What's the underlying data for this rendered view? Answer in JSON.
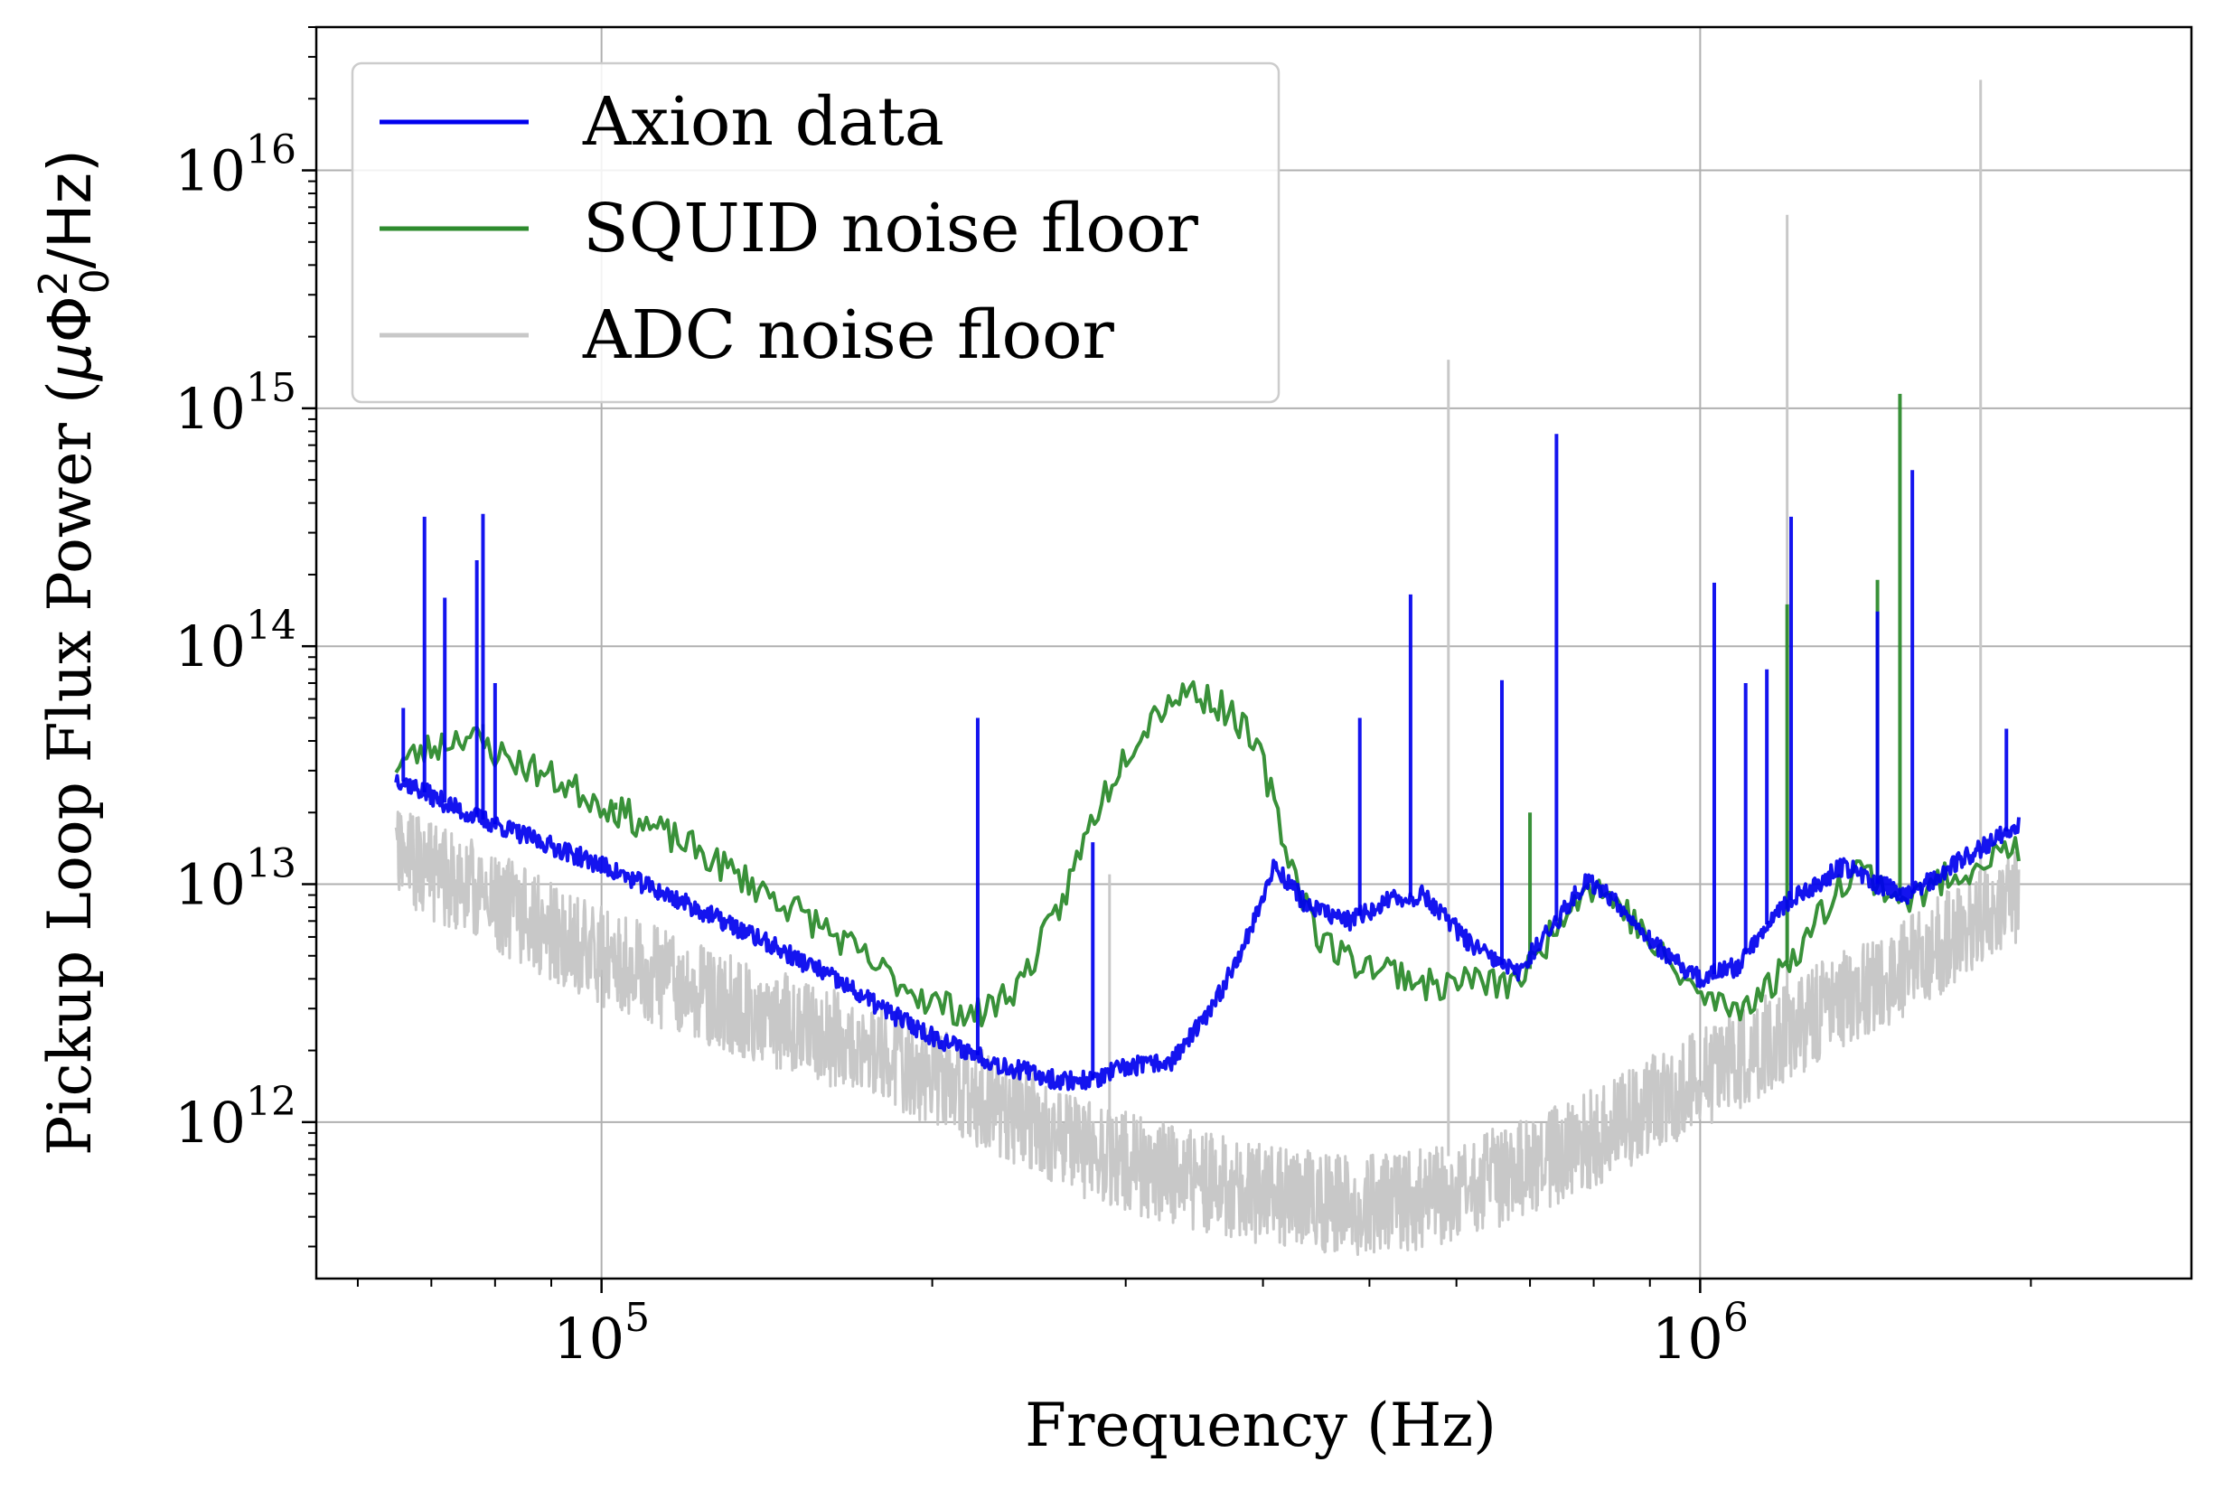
{
  "chart_data": {
    "type": "line",
    "xlabel": "Frequency (Hz)",
    "ylabel": {
      "prefix": "Pickup Loop Flux Power (",
      "mu": "μ",
      "phi": "Φ",
      "sup": "2",
      "sub": "0",
      "suffix": "/Hz)"
    },
    "xscale": "log",
    "yscale": "log",
    "xlim": [
      55000,
      2800000
    ],
    "ylim": [
      220000000000.0,
      4e+16
    ],
    "grid": true,
    "legend_position": "upper-left",
    "x_ticks": [
      {
        "value": 100000,
        "base": "10",
        "exp": "5"
      },
      {
        "value": 1000000,
        "base": "10",
        "exp": "6"
      }
    ],
    "y_ticks": [
      {
        "value": 1000000000000.0,
        "base": "10",
        "exp": "12"
      },
      {
        "value": 10000000000000.0,
        "base": "10",
        "exp": "13"
      },
      {
        "value": 100000000000000.0,
        "base": "10",
        "exp": "14"
      },
      {
        "value": 1000000000000000.0,
        "base": "10",
        "exp": "15"
      },
      {
        "value": 1e+16,
        "base": "10",
        "exp": "16"
      }
    ],
    "series": [
      {
        "name": "ADC noise floor",
        "color": "#c8c8c8",
        "points": [
          [
            65000,
            19000000000000.0
          ],
          [
            80000,
            12000000000000.0
          ],
          [
            100000,
            7000000000000.0
          ],
          [
            130000,
            4500000000000.0
          ],
          [
            160000,
            3300000000000.0
          ],
          [
            200000,
            2200000000000.0
          ],
          [
            240000,
            1500000000000.0
          ],
          [
            280000,
            1050000000000.0
          ],
          [
            330000,
            850000000000.0
          ],
          [
            400000,
            700000000000.0
          ],
          [
            480000,
            630000000000.0
          ],
          [
            560000,
            670000000000.0
          ],
          [
            650000,
            820000000000.0
          ],
          [
            750000,
            1050000000000.0
          ],
          [
            850000,
            1400000000000.0
          ],
          [
            950000,
            1900000000000.0
          ],
          [
            1100000,
            2700000000000.0
          ],
          [
            1300000,
            4200000000000.0
          ],
          [
            1500000,
            6000000000000.0
          ],
          [
            1700000,
            8500000000000.0
          ],
          [
            1950000,
            13000000000000.0
          ]
        ],
        "spikes": [
          [
            290000,
            11000000000000.0
          ],
          [
            590000,
            1600000000000000.0
          ],
          [
            1200000,
            6500000000000000.0
          ],
          [
            1800000,
            2.4e+16
          ]
        ]
      },
      {
        "name": "SQUID noise floor",
        "color": "#2e8b2e",
        "points": [
          [
            65000,
            32000000000000.0
          ],
          [
            75000,
            43000000000000.0
          ],
          [
            80000,
            36000000000000.0
          ],
          [
            90000,
            28000000000000.0
          ],
          [
            100000,
            22000000000000.0
          ],
          [
            120000,
            14500000000000.0
          ],
          [
            140000,
            9500000000000.0
          ],
          [
            160000,
            6500000000000.0
          ],
          [
            180000,
            4300000000000.0
          ],
          [
            200000,
            3200000000000.0
          ],
          [
            220000,
            2800000000000.0
          ],
          [
            240000,
            3800000000000.0
          ],
          [
            260000,
            7500000000000.0
          ],
          [
            280000,
            19000000000000.0
          ],
          [
            300000,
            36000000000000.0
          ],
          [
            320000,
            54000000000000.0
          ],
          [
            340000,
            66000000000000.0
          ],
          [
            360000,
            59000000000000.0
          ],
          [
            380000,
            49000000000000.0
          ],
          [
            400000,
            32000000000000.0
          ],
          [
            420000,
            14000000000000.0
          ],
          [
            450000,
            6000000000000.0
          ],
          [
            480000,
            4800000000000.0
          ],
          [
            530000,
            4300000000000.0
          ],
          [
            570000,
            3700000000000.0
          ],
          [
            620000,
            4000000000000.0
          ],
          [
            660000,
            3700000000000.0
          ],
          [
            700000,
            4400000000000.0
          ],
          [
            760000,
            8500000000000.0
          ],
          [
            800000,
            10000000000000.0
          ],
          [
            850000,
            8000000000000.0
          ],
          [
            920000,
            5000000000000.0
          ],
          [
            1000000,
            3400000000000.0
          ],
          [
            1070000,
            3000000000000.0
          ],
          [
            1150000,
            3600000000000.0
          ],
          [
            1250000,
            6000000000000.0
          ],
          [
            1350000,
            10500000000000.0
          ],
          [
            1400000,
            12000000000000.0
          ],
          [
            1450000,
            10000000000000.0
          ],
          [
            1550000,
            8500000000000.0
          ],
          [
            1700000,
            11000000000000.0
          ],
          [
            1950000,
            14500000000000.0
          ]
        ],
        "spikes": [
          [
            78000,
            47000000000000.0
          ],
          [
            103000,
            22000000000000.0
          ],
          [
            700000,
            20000000000000.0
          ],
          [
            1200000,
            150000000000000.0
          ],
          [
            1450000,
            190000000000000.0
          ],
          [
            1520000,
            1150000000000000.0
          ]
        ]
      },
      {
        "name": "Axion data",
        "color": "#0000ee",
        "points": [
          [
            65000,
            28000000000000.0
          ],
          [
            75000,
            20000000000000.0
          ],
          [
            90000,
            14500000000000.0
          ],
          [
            100000,
            12000000000000.0
          ],
          [
            120000,
            8200000000000.0
          ],
          [
            140000,
            5800000000000.0
          ],
          [
            160000,
            4200000000000.0
          ],
          [
            180000,
            3000000000000.0
          ],
          [
            200000,
            2300000000000.0
          ],
          [
            230000,
            1750000000000.0
          ],
          [
            260000,
            1500000000000.0
          ],
          [
            280000,
            1500000000000.0
          ],
          [
            300000,
            1700000000000.0
          ],
          [
            330000,
            1800000000000.0
          ],
          [
            360000,
            3000000000000.0
          ],
          [
            390000,
            6500000000000.0
          ],
          [
            410000,
            12000000000000.0
          ],
          [
            440000,
            8000000000000.0
          ],
          [
            480000,
            7000000000000.0
          ],
          [
            520000,
            8500000000000.0
          ],
          [
            560000,
            9000000000000.0
          ],
          [
            620000,
            5500000000000.0
          ],
          [
            680000,
            4200000000000.0
          ],
          [
            740000,
            7000000000000.0
          ],
          [
            790000,
            10500000000000.0
          ],
          [
            850000,
            8000000000000.0
          ],
          [
            930000,
            5000000000000.0
          ],
          [
            1000000,
            4000000000000.0
          ],
          [
            1080000,
            4500000000000.0
          ],
          [
            1180000,
            8000000000000.0
          ],
          [
            1280000,
            10000000000000.0
          ],
          [
            1350000,
            12000000000000.0
          ],
          [
            1450000,
            10000000000000.0
          ],
          [
            1550000,
            9000000000000.0
          ],
          [
            1700000,
            12000000000000.0
          ],
          [
            1950000,
            18000000000000.0
          ]
        ],
        "spikes": [
          [
            66000,
            55000000000000.0
          ],
          [
            69000,
            350000000000000.0
          ],
          [
            72000,
            160000000000000.0
          ],
          [
            77000,
            230000000000000.0
          ],
          [
            78000,
            360000000000000.0
          ],
          [
            80000,
            70000000000000.0
          ],
          [
            220000,
            50000000000000.0
          ],
          [
            280000,
            15000000000000.0
          ],
          [
            490000,
            50000000000000.0
          ],
          [
            545000,
            165000000000000.0
          ],
          [
            660000,
            72000000000000.0
          ],
          [
            740000,
            780000000000000.0
          ],
          [
            1030000,
            185000000000000.0
          ],
          [
            1100000,
            70000000000000.0
          ],
          [
            1150000,
            80000000000000.0
          ],
          [
            1210000,
            350000000000000.0
          ],
          [
            1450000,
            140000000000000.0
          ],
          [
            1560000,
            550000000000000.0
          ],
          [
            1900000,
            45000000000000.0
          ]
        ]
      }
    ],
    "legend": [
      "Axion data",
      "SQUID noise floor",
      "ADC noise floor"
    ]
  }
}
